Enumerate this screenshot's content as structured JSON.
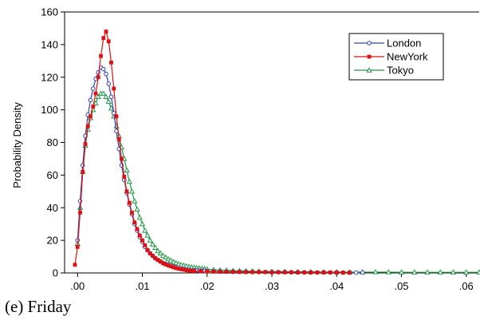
{
  "caption": "(e) Friday",
  "chart_data": {
    "type": "line",
    "title": "",
    "xlabel": "",
    "ylabel": "Probability Density",
    "xlim": [
      -0.002,
      0.062
    ],
    "ylim": [
      0,
      160
    ],
    "xticks": [
      0,
      0.01,
      0.02,
      0.03,
      0.04,
      0.05,
      0.06
    ],
    "xtick_labels": [
      ".00",
      ".01",
      ".02",
      ".03",
      ".04",
      ".05",
      ".06"
    ],
    "yticks": [
      0,
      20,
      40,
      60,
      80,
      100,
      120,
      140,
      160
    ],
    "ytick_labels": [
      "0",
      "20",
      "40",
      "60",
      "80",
      "100",
      "120",
      "140",
      "160"
    ],
    "grid": false,
    "legend": "top-right",
    "series": [
      {
        "name": "London",
        "color": "#3344aa",
        "marker": "circle",
        "x": [
          0,
          0.0004,
          0.0008,
          0.0012,
          0.0016,
          0.002,
          0.0024,
          0.0028,
          0.0032,
          0.0036,
          0.004,
          0.0044,
          0.0048,
          0.0052,
          0.0056,
          0.006,
          0.0064,
          0.0068,
          0.0072,
          0.0076,
          0.008,
          0.0084,
          0.0088,
          0.0092,
          0.0096,
          0.01,
          0.0104,
          0.0108,
          0.0112,
          0.0116,
          0.012,
          0.0124,
          0.0128,
          0.0132,
          0.0136,
          0.014,
          0.0144,
          0.0148,
          0.0152,
          0.0156,
          0.016,
          0.0164,
          0.0168,
          0.0172,
          0.0176,
          0.018,
          0.0184,
          0.0188,
          0.0192,
          0.0196,
          0.02,
          0.021,
          0.022,
          0.023,
          0.024,
          0.025,
          0.026,
          0.027,
          0.028,
          0.029,
          0.03,
          0.031,
          0.032,
          0.033,
          0.034,
          0.035,
          0.036,
          0.037,
          0.038,
          0.039,
          0.04,
          0.041,
          0.042,
          0.043,
          0.044
        ],
        "y": [
          20,
          44,
          66,
          84,
          97,
          106,
          113,
          119,
          123,
          126,
          125,
          122,
          116,
          108,
          98,
          87,
          76,
          66,
          57,
          49,
          42,
          36,
          30,
          26,
          22,
          19,
          16,
          14,
          12,
          10.5,
          9,
          8,
          7,
          6,
          5.5,
          5,
          4.5,
          4,
          3.6,
          3.2,
          2.8,
          2.5,
          2.2,
          2,
          1.8,
          1.6,
          1.5,
          1.4,
          1.3,
          1.2,
          1.1,
          1,
          0.9,
          0.8,
          0.8,
          0.7,
          0.7,
          0.6,
          0.6,
          0.6,
          0.5,
          0.5,
          0.5,
          0.4,
          0.4,
          0.4,
          0.3,
          0.3,
          0.3,
          0.3,
          0.2,
          0.2,
          0.2,
          0.2,
          0.2
        ]
      },
      {
        "name": "NewYork",
        "color": "#dd1111",
        "marker": "square",
        "x": [
          -0.0004,
          0,
          0.0004,
          0.0008,
          0.0012,
          0.0016,
          0.002,
          0.0024,
          0.0028,
          0.0032,
          0.0036,
          0.004,
          0.0044,
          0.0048,
          0.0052,
          0.0056,
          0.006,
          0.0064,
          0.0068,
          0.0072,
          0.0076,
          0.008,
          0.0084,
          0.0088,
          0.0092,
          0.0096,
          0.01,
          0.0104,
          0.0108,
          0.0112,
          0.0116,
          0.012,
          0.0124,
          0.0128,
          0.0132,
          0.0136,
          0.014,
          0.0144,
          0.0148,
          0.0152,
          0.0156,
          0.016,
          0.0164,
          0.0168,
          0.0172,
          0.0176,
          0.018,
          0.019,
          0.02,
          0.021,
          0.022,
          0.023,
          0.024,
          0.025,
          0.026,
          0.027,
          0.028,
          0.029,
          0.03,
          0.031,
          0.032,
          0.033,
          0.034,
          0.035,
          0.036,
          0.037,
          0.038,
          0.039,
          0.04,
          0.041,
          0.042
        ],
        "y": [
          5,
          16,
          37,
          62,
          79,
          90,
          96,
          102,
          110,
          120,
          133,
          144,
          148,
          142,
          129,
          113,
          96,
          82,
          70,
          59,
          50,
          43,
          37,
          31,
          27,
          23,
          20,
          17,
          14,
          12,
          10.5,
          9,
          8,
          7,
          6,
          5.2,
          4.6,
          4,
          3.5,
          3,
          2.6,
          2.3,
          2,
          1.7,
          1.5,
          1.3,
          1.2,
          1,
          0.9,
          0.8,
          0.7,
          0.7,
          0.6,
          0.6,
          0.5,
          0.5,
          0.5,
          0.5,
          0.4,
          0.4,
          0.4,
          0.4,
          0.3,
          0.3,
          0.3,
          0.3,
          0.3,
          0.3,
          0.3,
          0.2,
          0.2
        ]
      },
      {
        "name": "Tokyo",
        "color": "#229944",
        "marker": "triangle",
        "x": [
          0,
          0.0004,
          0.0008,
          0.0012,
          0.0016,
          0.002,
          0.0024,
          0.0028,
          0.0032,
          0.0036,
          0.004,
          0.0044,
          0.0048,
          0.0052,
          0.0056,
          0.006,
          0.0064,
          0.0068,
          0.0072,
          0.0076,
          0.008,
          0.0084,
          0.0088,
          0.0092,
          0.0096,
          0.01,
          0.0104,
          0.0108,
          0.0112,
          0.0116,
          0.012,
          0.0124,
          0.0128,
          0.0132,
          0.0136,
          0.014,
          0.0144,
          0.0148,
          0.0152,
          0.0156,
          0.016,
          0.0164,
          0.0168,
          0.0172,
          0.0176,
          0.018,
          0.0184,
          0.0188,
          0.0192,
          0.0196,
          0.02,
          0.021,
          0.022,
          0.023,
          0.024,
          0.025,
          0.026,
          0.027,
          0.028,
          0.03,
          0.032,
          0.034,
          0.036,
          0.038,
          0.04,
          0.042,
          0.044,
          0.046,
          0.048,
          0.05,
          0.052,
          0.054,
          0.056,
          0.058,
          0.06,
          0.062
        ],
        "y": [
          18,
          40,
          62,
          78,
          88,
          95,
          100,
          104,
          108,
          110,
          110,
          108,
          105,
          101,
          96,
          90,
          84,
          77,
          70,
          63,
          56,
          50,
          44,
          39,
          34,
          30,
          26,
          23,
          20,
          17.5,
          15.5,
          13.5,
          12,
          10.5,
          9.5,
          8.5,
          7.6,
          6.8,
          6.1,
          5.5,
          5,
          4.6,
          4.2,
          3.9,
          3.6,
          3.3,
          3.1,
          2.9,
          2.7,
          2.5,
          2.3,
          2,
          1.8,
          1.6,
          1.4,
          1.3,
          1.2,
          1.1,
          1,
          0.9,
          0.8,
          0.7,
          0.7,
          0.6,
          0.6,
          0.5,
          0.5,
          0.5,
          0.5,
          0.4,
          0.4,
          0.4,
          0.4,
          0.4,
          0.4,
          0.4
        ]
      }
    ]
  }
}
